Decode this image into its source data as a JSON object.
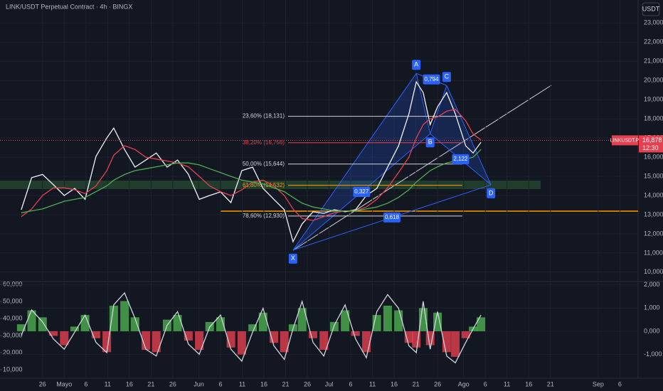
{
  "chart_data": [
    {
      "type": "line",
      "title": "LINK/USDT Perpetual Contract · 4h · BINGX",
      "unit": "USDT",
      "x": [
        -4.9,
        -2.5,
        0,
        2.5,
        5,
        7.4,
        9.8,
        12.3,
        14.8,
        16.4,
        18.9,
        21.3,
        23.8,
        26.2,
        28.7,
        31.1,
        33.6,
        36.1,
        38.5,
        41,
        43.4,
        45.9,
        48.4,
        50.8,
        53.3,
        55.7,
        57.7,
        59.8,
        62.3,
        64.8,
        67.2,
        69.7,
        72.1,
        74.6,
        77,
        79.5,
        82,
        84.4,
        86.1,
        87.7,
        89.3,
        91,
        93.1,
        95.1,
        97.5,
        99.2,
        101
      ],
      "xlim": [
        -9.8,
        137.2
      ],
      "xticks": [
        {
          "value": 0,
          "label": "26"
        },
        {
          "value": 5,
          "label": "Mayo"
        },
        {
          "value": 10,
          "label": "6"
        },
        {
          "value": 15,
          "label": "11"
        },
        {
          "value": 20,
          "label": "16"
        },
        {
          "value": 25,
          "label": "21"
        },
        {
          "value": 30,
          "label": "26"
        },
        {
          "value": 36,
          "label": "Jun"
        },
        {
          "value": 41,
          "label": "6"
        },
        {
          "value": 46,
          "label": "11"
        },
        {
          "value": 51,
          "label": "16"
        },
        {
          "value": 56,
          "label": "21"
        },
        {
          "value": 61,
          "label": "26"
        },
        {
          "value": 66,
          "label": "Jul"
        },
        {
          "value": 71,
          "label": "6"
        },
        {
          "value": 76,
          "label": "11"
        },
        {
          "value": 81,
          "label": "16"
        },
        {
          "value": 86,
          "label": "21"
        },
        {
          "value": 91,
          "label": "26"
        },
        {
          "value": 97,
          "label": "Ago"
        },
        {
          "value": 102,
          "label": "6"
        },
        {
          "value": 107,
          "label": "11"
        },
        {
          "value": 112,
          "label": "16"
        },
        {
          "value": 117,
          "label": "21"
        },
        {
          "value": 128,
          "label": "Sep"
        },
        {
          "value": 133,
          "label": "6"
        }
      ],
      "ylim": [
        9550,
        24200
      ],
      "yticks": [
        {
          "value": 10000,
          "label": "10,000"
        },
        {
          "value": 11000,
          "label": "11,000"
        },
        {
          "value": 12000,
          "label": "12,000"
        },
        {
          "value": 13000,
          "label": "13,000"
        },
        {
          "value": 14000,
          "label": "14,000"
        },
        {
          "value": 15000,
          "label": "15,000"
        },
        {
          "value": 16000,
          "label": "16,000"
        },
        {
          "value": 17000,
          "label": "17,000"
        },
        {
          "value": 18000,
          "label": "18,000"
        },
        {
          "value": 19000,
          "label": "19,000"
        },
        {
          "value": 20000,
          "label": "20,000"
        },
        {
          "value": 21000,
          "label": "21,000"
        },
        {
          "value": 22000,
          "label": "22,000"
        },
        {
          "value": 23000,
          "label": "23,000"
        }
      ],
      "series": [
        {
          "color": "#f0f3fa",
          "values": [
            13260,
            14930,
            15100,
            14560,
            14000,
            14370,
            13800,
            16040,
            17000,
            17520,
            16400,
            15480,
            15850,
            16220,
            15480,
            15850,
            15110,
            13800,
            14000,
            14190,
            13630,
            15300,
            15480,
            14370,
            13800,
            13260,
            11590,
            12520,
            13150,
            13070,
            13260,
            13150,
            13260,
            14000,
            14370,
            15480,
            16590,
            18260,
            19930,
            19370,
            17700,
            18630,
            19370,
            18260,
            16590,
            16220,
            16780
          ]
        },
        {
          "color": "#e5404f",
          "values": [
            12900,
            13300,
            14000,
            14400,
            14400,
            14300,
            14100,
            14500,
            15300,
            16100,
            16600,
            16400,
            16000,
            15900,
            15800,
            15700,
            15500,
            15000,
            14500,
            14200,
            14000,
            14300,
            14700,
            14800,
            14500,
            14000,
            13300,
            12800,
            12700,
            12900,
            13100,
            13200,
            13200,
            13400,
            13800,
            14400,
            15200,
            16000,
            17000,
            17700,
            18000,
            18100,
            18400,
            18500,
            17900,
            17200,
            16900
          ]
        },
        {
          "color": "#4caf50",
          "values": [
            13100,
            13200,
            13300,
            13500,
            13700,
            13800,
            13900,
            14200,
            14500,
            14800,
            15100,
            15300,
            15400,
            15500,
            15600,
            15700,
            15700,
            15600,
            15400,
            15200,
            15000,
            14800,
            14700,
            14600,
            14400,
            14200,
            13900,
            13600,
            13400,
            13300,
            13200,
            13200,
            13200,
            13300,
            13400,
            13600,
            13900,
            14300,
            14700,
            15000,
            15300,
            15500,
            15700,
            15800,
            15900,
            16000,
            16400
          ]
        }
      ],
      "fib_levels": [
        {
          "label": "23,60% (18,131)",
          "value": 18131,
          "color": "#d1d4dc"
        },
        {
          "label": "38,20% (16,756)",
          "value": 16756,
          "color": "#e5404f"
        },
        {
          "label": "50,00% (15,644)",
          "value": 15644,
          "color": "#d1d4dc"
        },
        {
          "label": "61,80% (14,532)",
          "value": 14532,
          "color": "#ff9800"
        },
        {
          "label": "78,60% (12,930)",
          "value": 12930,
          "color": "#d1d4dc"
        }
      ],
      "pattern": {
        "points": [
          {
            "label": "X",
            "x": 57.7,
            "y": 11150
          },
          {
            "label": "A",
            "x": 86.1,
            "y": 20370
          },
          {
            "label": "B",
            "x": 89.3,
            "y": 17220
          },
          {
            "label": "C",
            "x": 93.1,
            "y": 19740
          },
          {
            "label": "D",
            "x": 103.3,
            "y": 14560
          }
        ],
        "ratios": [
          "0,794",
          "0,327",
          "0,618",
          "2,122"
        ]
      },
      "last": {
        "label": "LINKUSDT.P",
        "value": 16878,
        "value_label": "16,878",
        "countdown": "12:30"
      }
    },
    {
      "type": "bar",
      "x": [
        -4.9,
        -2.5,
        0,
        2.5,
        5,
        7.4,
        9.8,
        12.3,
        14.8,
        16.4,
        18.9,
        21.3,
        23.8,
        26.2,
        28.7,
        31.1,
        33.6,
        36.1,
        38.5,
        41,
        43.4,
        45.9,
        48.4,
        50.8,
        53.3,
        55.7,
        57.7,
        59.8,
        62.3,
        64.8,
        67.2,
        69.7,
        72.1,
        74.6,
        77,
        79.5,
        82,
        84.4,
        86.1,
        87.7,
        89.3,
        91,
        93.1,
        95.1,
        97.5,
        99.2,
        101
      ],
      "ylim": [
        5830,
        61250
      ],
      "yticks": [
        {
          "value": 10000,
          "label": "10,000"
        },
        {
          "value": 20000,
          "label": "20,000"
        },
        {
          "value": 30000,
          "label": "30,000"
        },
        {
          "value": 40000,
          "label": "40,000"
        },
        {
          "value": 50000,
          "label": "50,000"
        },
        {
          "value": 60000,
          "label": "60,000"
        }
      ],
      "y2lim": [
        -1960,
        2110
      ],
      "y2ticks": [
        {
          "value": 2000,
          "label": "2,000"
        },
        {
          "value": 1000,
          "label": "1,000"
        },
        {
          "value": 0,
          "label": "0,000"
        },
        {
          "value": -1000,
          "label": "-1,000"
        }
      ],
      "series": [
        {
          "axis": "y2",
          "up_color": "#4caf50",
          "down_color": "#e5404f",
          "values": [
            300,
            900,
            600,
            -200,
            -600,
            200,
            700,
            -300,
            -900,
            1100,
            1300,
            600,
            -800,
            -900,
            500,
            700,
            -400,
            -800,
            400,
            600,
            -700,
            -1000,
            300,
            800,
            -500,
            -900,
            300,
            1000,
            -300,
            -800,
            400,
            900,
            -200,
            -900,
            700,
            1100,
            900,
            -500,
            -700,
            1000,
            -600,
            800,
            -900,
            -1100,
            -300,
            200,
            600
          ]
        },
        {
          "color": "#d1d4dc",
          "values": [
            30000,
            45000,
            38000,
            28000,
            22000,
            32000,
            42000,
            26000,
            20000,
            48000,
            55000,
            40000,
            22000,
            18000,
            36000,
            44000,
            25000,
            19000,
            35000,
            42000,
            22000,
            15000,
            32000,
            46000,
            24000,
            16000,
            34000,
            50000,
            26000,
            18000,
            36000,
            48000,
            28000,
            17000,
            44000,
            54000,
            46000,
            24000,
            20000,
            50000,
            22000,
            44000,
            18000,
            14000,
            26000,
            34000,
            42000
          ]
        }
      ]
    }
  ]
}
